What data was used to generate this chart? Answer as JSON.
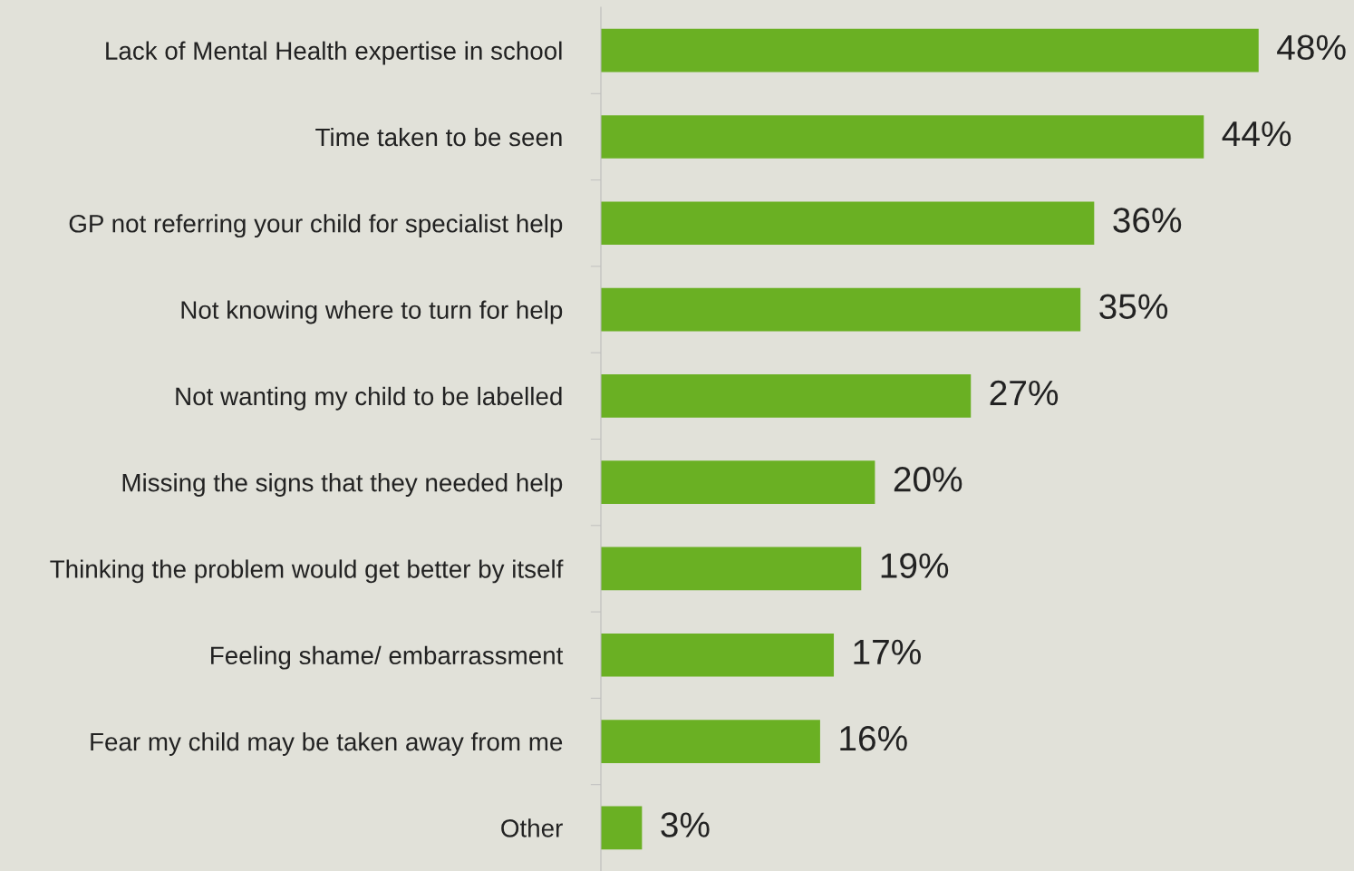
{
  "chart_data": {
    "type": "bar",
    "orientation": "horizontal",
    "categories": [
      "Lack of Mental Health expertise in school",
      "Time taken to be seen",
      "GP not referring your child for specialist help",
      "Not knowing where to turn for help",
      "Not wanting my child to be labelled",
      "Missing the signs that they needed help",
      "Thinking the problem would get better by itself",
      "Feeling shame/ embarrassment",
      "Fear my child may be taken away from me",
      "Other"
    ],
    "values": [
      48,
      44,
      36,
      35,
      27,
      20,
      19,
      17,
      16,
      3
    ],
    "value_labels": [
      "48%",
      "44%",
      "36%",
      "35%",
      "27%",
      "20%",
      "19%",
      "17%",
      "16%",
      "3%"
    ],
    "color": "#6ab023"
  }
}
